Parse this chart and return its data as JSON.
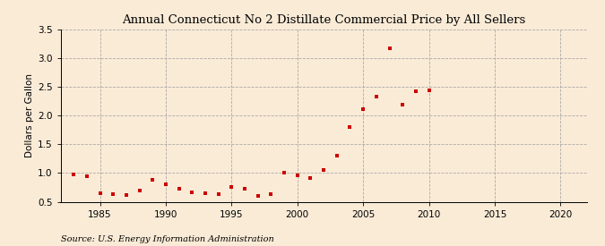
{
  "title": "Annual Connecticut No 2 Distillate Commercial Price by All Sellers",
  "ylabel": "Dollars per Gallon",
  "source": "Source: U.S. Energy Information Administration",
  "background_color": "#faebd7",
  "marker_color": "#cc0000",
  "xlim": [
    1982,
    2022
  ],
  "ylim": [
    0.5,
    3.5
  ],
  "xticks": [
    1985,
    1990,
    1995,
    2000,
    2005,
    2010,
    2015,
    2020
  ],
  "yticks": [
    0.5,
    1.0,
    1.5,
    2.0,
    2.5,
    3.0,
    3.5
  ],
  "years": [
    1983,
    1984,
    1985,
    1986,
    1987,
    1988,
    1989,
    1990,
    1991,
    1992,
    1993,
    1994,
    1995,
    1996,
    1997,
    1998,
    1999,
    2000,
    2001,
    2002,
    2003,
    2004,
    2005,
    2006,
    2007,
    2008,
    2009,
    2010
  ],
  "values": [
    0.97,
    0.95,
    0.65,
    0.63,
    0.61,
    0.7,
    0.88,
    0.8,
    0.73,
    0.67,
    0.65,
    0.64,
    0.75,
    0.73,
    0.6,
    0.63,
    1.01,
    0.96,
    0.91,
    1.06,
    1.3,
    1.8,
    2.11,
    2.33,
    3.18,
    2.19,
    2.42,
    2.44
  ],
  "title_fontsize": 9.5,
  "label_fontsize": 7.5,
  "tick_fontsize": 7.5,
  "source_fontsize": 7
}
